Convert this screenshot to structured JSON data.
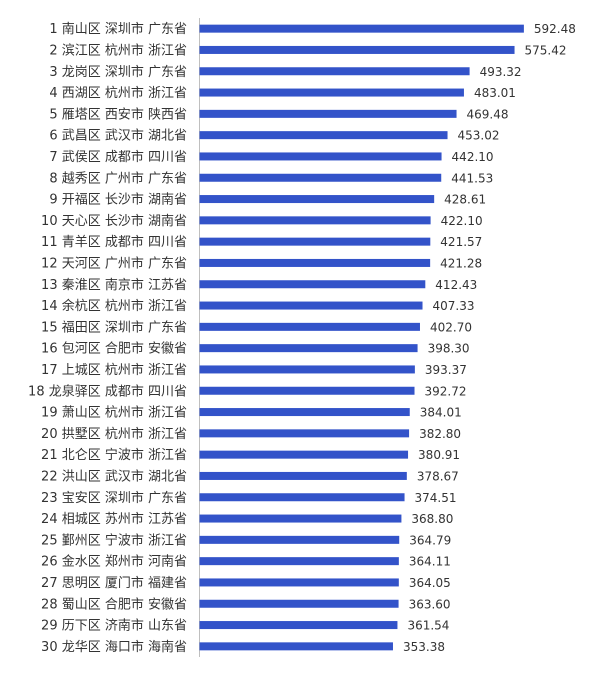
{
  "chart_data": {
    "type": "hbar",
    "color": "#3353c9",
    "categories": [
      "1 南山区 深圳市 广东省",
      "2 滨江区 杭州市 浙江省",
      "3 龙岗区 深圳市 广东省",
      "4 西湖区 杭州市 浙江省",
      "5 雁塔区 西安市 陕西省",
      "6 武昌区 武汉市 湖北省",
      "7 武侯区 成都市 四川省",
      "8 越秀区 广州市 广东省",
      "9 开福区 长沙市 湖南省",
      "10 天心区 长沙市 湖南省",
      "11 青羊区 成都市 四川省",
      "12 天河区 广州市 广东省",
      "13 秦淮区 南京市 江苏省",
      "14 余杭区 杭州市 浙江省",
      "15 福田区 深圳市 广东省",
      "16 包河区 合肥市 安徽省",
      "17 上城区 杭州市 浙江省",
      "18 龙泉驿区 成都市 四川省",
      "19 萧山区 杭州市 浙江省",
      "20 拱墅区 杭州市 浙江省",
      "21 北仑区 宁波市 浙江省",
      "22 洪山区 武汉市 湖北省",
      "23 宝安区 深圳市 广东省",
      "24 相城区 苏州市 江苏省",
      "25 鄞州区 宁波市 浙江省",
      "26 金水区 郑州市 河南省",
      "27 思明区 厦门市 福建省",
      "28 蜀山区 合肥市 安徽省",
      "29 历下区 济南市 山东省",
      "30 龙华区 海口市 海南省"
    ],
    "values": [
      592.48,
      575.42,
      493.32,
      483.01,
      469.48,
      453.02,
      442.1,
      441.53,
      428.61,
      422.1,
      421.57,
      421.28,
      412.43,
      407.33,
      402.7,
      398.3,
      393.37,
      392.72,
      384.01,
      382.8,
      380.91,
      378.67,
      374.51,
      368.8,
      364.79,
      364.11,
      364.05,
      363.6,
      361.54,
      353.38
    ],
    "value_labels": [
      "592.48",
      "575.42",
      "493.32",
      "483.01",
      "469.48",
      "453.02",
      "442.10",
      "441.53",
      "428.61",
      "422.10",
      "421.57",
      "421.28",
      "412.43",
      "407.33",
      "402.70",
      "398.30",
      "393.37",
      "392.72",
      "384.01",
      "382.80",
      "380.91",
      "378.67",
      "374.51",
      "368.80",
      "364.79",
      "364.11",
      "364.05",
      "363.60",
      "361.54",
      "353.38"
    ],
    "xlim": [
      0,
      600
    ]
  }
}
